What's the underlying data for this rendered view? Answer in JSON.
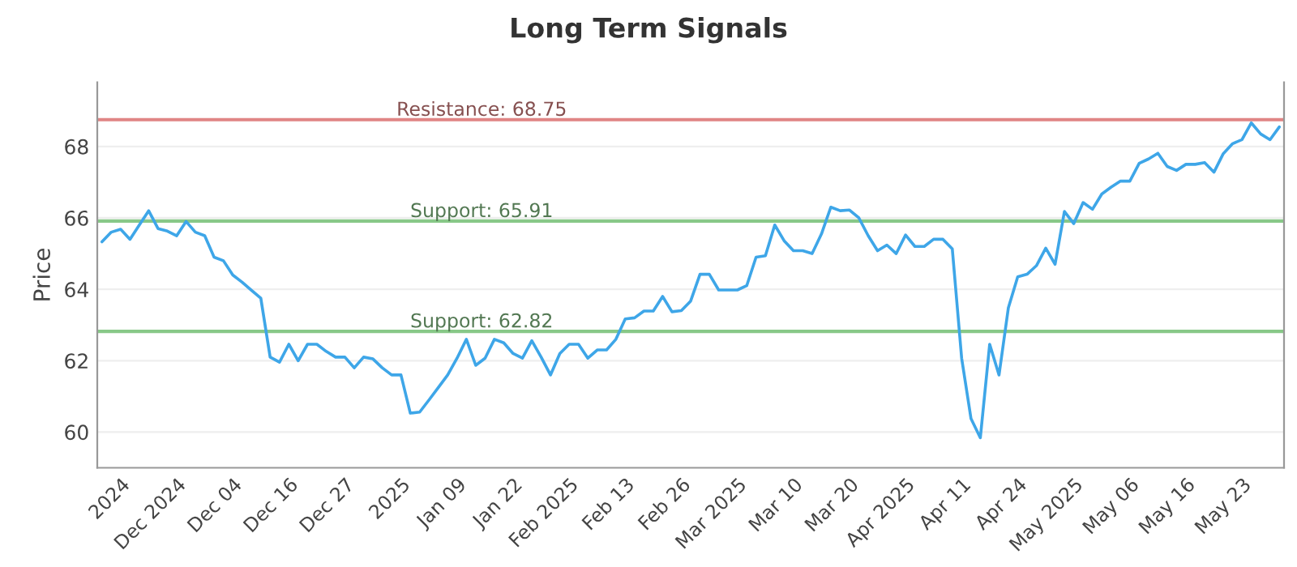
{
  "chart_data": {
    "type": "line",
    "title": "Long Term Signals",
    "ylabel": "Price",
    "categories": [
      null,
      null,
      "2024",
      null,
      null,
      null,
      null,
      null,
      "Dec 2024",
      null,
      null,
      null,
      null,
      null,
      "Dec 04",
      null,
      null,
      null,
      null,
      null,
      "Dec 16",
      null,
      null,
      null,
      null,
      null,
      "Dec 27",
      null,
      null,
      null,
      null,
      null,
      "2025",
      null,
      null,
      null,
      null,
      null,
      "Jan 09",
      null,
      null,
      null,
      null,
      null,
      "Jan 22",
      null,
      null,
      null,
      null,
      null,
      "Feb 2025",
      null,
      null,
      null,
      null,
      null,
      "Feb 13",
      null,
      null,
      null,
      null,
      null,
      "Feb 26",
      null,
      null,
      null,
      null,
      null,
      "Mar 2025",
      null,
      null,
      null,
      null,
      null,
      "Mar 10",
      null,
      null,
      null,
      null,
      null,
      "Mar 20",
      null,
      null,
      null,
      null,
      null,
      "Apr 2025",
      null,
      null,
      null,
      null,
      null,
      "Apr 11",
      null,
      null,
      null,
      null,
      null,
      "Apr 24",
      null,
      null,
      null,
      null,
      null,
      "May 2025",
      null,
      null,
      null,
      null,
      null,
      "May 06",
      null,
      null,
      null,
      null,
      null,
      "May 16",
      null,
      null,
      null,
      null,
      null,
      "May 23",
      null,
      null,
      null,
      null
    ],
    "series": [
      {
        "color": "#3ea6e8",
        "values": [
          65.33,
          65.6,
          65.68,
          65.4,
          65.8,
          66.2,
          65.7,
          65.63,
          65.5,
          65.9,
          65.6,
          65.5,
          64.9,
          64.8,
          64.4,
          64.2,
          63.97,
          63.75,
          62.1,
          61.96,
          62.46,
          62.0,
          62.46,
          62.46,
          62.26,
          62.1,
          62.1,
          61.8,
          62.1,
          62.05,
          61.8,
          61.6,
          61.6,
          60.53,
          60.56,
          60.9,
          61.25,
          61.6,
          62.07,
          62.6,
          61.87,
          62.07,
          62.6,
          62.5,
          62.2,
          62.07,
          62.56,
          62.1,
          61.6,
          62.2,
          62.46,
          62.46,
          62.07,
          62.3,
          62.3,
          62.6,
          63.17,
          63.2,
          63.39,
          63.39,
          63.8,
          63.37,
          63.4,
          63.67,
          64.42,
          64.42,
          63.98,
          63.98,
          63.98,
          64.1,
          64.9,
          64.94,
          65.8,
          65.36,
          65.08,
          65.08,
          65.0,
          65.55,
          66.3,
          66.2,
          66.22,
          66.0,
          65.5,
          65.08,
          65.24,
          65.0,
          65.52,
          65.2,
          65.2,
          65.4,
          65.4,
          65.13,
          62.07,
          60.38,
          59.84,
          62.46,
          61.6,
          63.48,
          64.35,
          64.42,
          64.66,
          65.15,
          64.7,
          66.18,
          65.84,
          66.43,
          66.24,
          66.67,
          66.86,
          67.03,
          67.03,
          67.53,
          67.65,
          67.81,
          67.44,
          67.33,
          67.5,
          67.5,
          67.55,
          67.28,
          67.8,
          68.08,
          68.19,
          68.66,
          68.35,
          68.19,
          68.55
        ]
      }
    ],
    "ylim": [
      59,
      69.8
    ],
    "yticks": [
      60,
      62,
      64,
      66,
      68
    ],
    "grid": "y",
    "marker": "none",
    "line_style": "solid",
    "ref_lines": [
      {
        "axis": "y",
        "value": 68.75,
        "label": "Resistance: 68.75",
        "color": "#e08585"
      },
      {
        "axis": "y",
        "value": 65.91,
        "label": "Support: 65.91",
        "color": "#88c888"
      },
      {
        "axis": "y",
        "value": 62.82,
        "label": "Support: 62.82",
        "color": "#88c888"
      }
    ]
  }
}
